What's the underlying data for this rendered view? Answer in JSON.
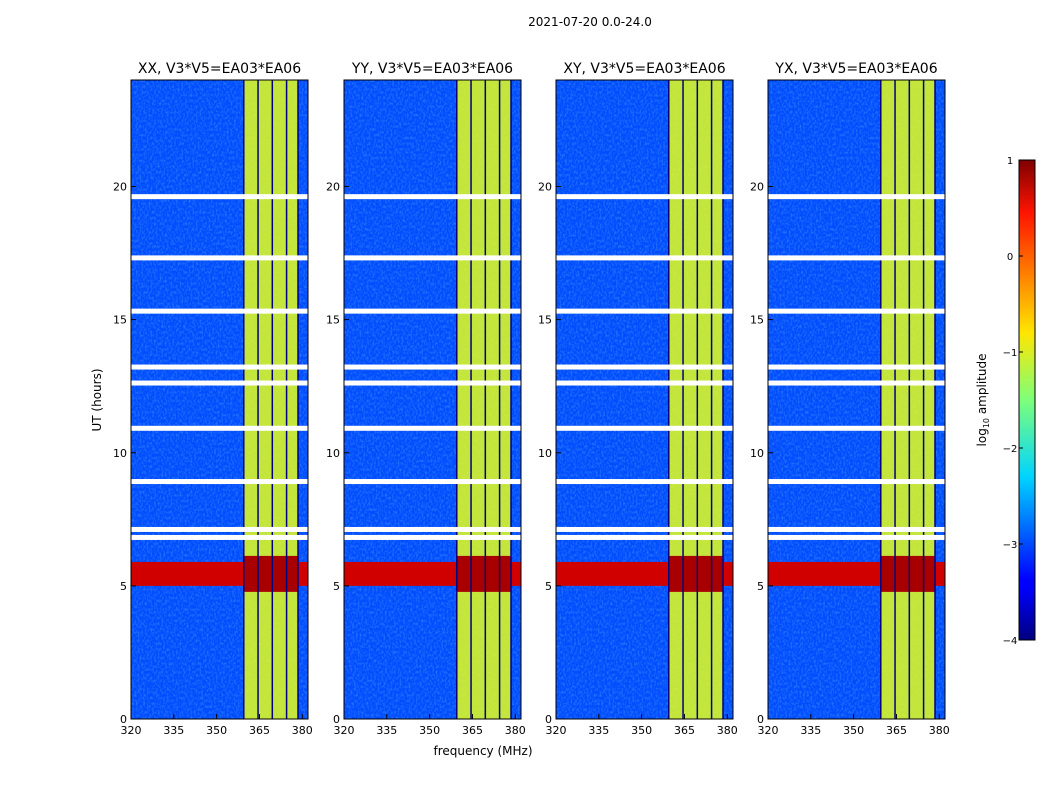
{
  "chart_data": {
    "type": "heatmap",
    "suptitle": "2021-07-20 0.0-24.0",
    "xlabel": "frequency (MHz)",
    "ylabel": "UT (hours)",
    "xlim": [
      320,
      382
    ],
    "ylim": [
      0,
      24
    ],
    "xticks": [
      320,
      335,
      350,
      365,
      380
    ],
    "yticks": [
      0,
      5,
      10,
      15,
      20
    ],
    "panels": [
      {
        "title": "XX, V3*V5=EA03*EA06",
        "pol": "XX"
      },
      {
        "title": "YY, V3*V5=EA03*EA06",
        "pol": "YY"
      },
      {
        "title": "XY, V3*V5=EA03*EA06",
        "pol": "XY"
      },
      {
        "title": "YX, V3*V5=EA03*EA06",
        "pol": "YX"
      }
    ],
    "colorbar": {
      "label": "log10 amplitude",
      "label_main": "log",
      "label_sub": "10",
      "label_rest": " amplitude",
      "range": [
        -4,
        1
      ],
      "ticks": [
        1,
        0,
        -1,
        -2,
        -3,
        -4
      ],
      "tick_labels": [
        "1",
        "0",
        "−1",
        "−2",
        "−3",
        "−4"
      ],
      "colormap": "jet"
    },
    "features": {
      "rfi_band_mhz": [
        359.5,
        378.5
      ],
      "rfi_subband_edges_mhz": [
        359.5,
        364.5,
        369.5,
        374.5,
        378.5
      ],
      "strong_rfi_time_hours": [
        5.0,
        5.9
      ],
      "blank_rows_hours": [
        19.6,
        17.3,
        15.3,
        13.2,
        12.6,
        10.9,
        8.9,
        7.1,
        6.8
      ],
      "background_log10": -3.0,
      "rfi_band_level_log10": -1.0,
      "strong_event_level_log10": 0.8
    }
  }
}
